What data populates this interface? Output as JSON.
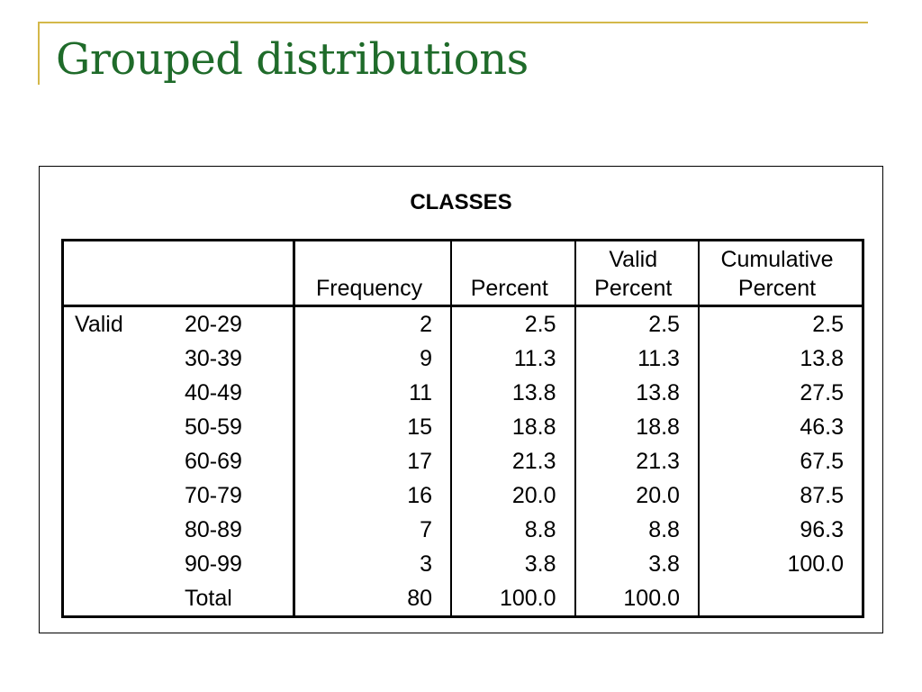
{
  "slide": {
    "title": "Grouped distributions"
  },
  "table": {
    "caption": "CLASSES",
    "columns": {
      "frequency": "Frequency",
      "percent": "Percent",
      "valid_percent": [
        "Valid",
        "Percent"
      ],
      "cumulative_percent": [
        "Cumulative",
        "Percent"
      ]
    },
    "group_label": "Valid",
    "rows": [
      {
        "cls": "20-29",
        "frequency": "2",
        "percent": "2.5",
        "valid_percent": "2.5",
        "cumulative_percent": "2.5"
      },
      {
        "cls": "30-39",
        "frequency": "9",
        "percent": "11.3",
        "valid_percent": "11.3",
        "cumulative_percent": "13.8"
      },
      {
        "cls": "40-49",
        "frequency": "11",
        "percent": "13.8",
        "valid_percent": "13.8",
        "cumulative_percent": "27.5"
      },
      {
        "cls": "50-59",
        "frequency": "15",
        "percent": "18.8",
        "valid_percent": "18.8",
        "cumulative_percent": "46.3"
      },
      {
        "cls": "60-69",
        "frequency": "17",
        "percent": "21.3",
        "valid_percent": "21.3",
        "cumulative_percent": "67.5"
      },
      {
        "cls": "70-79",
        "frequency": "16",
        "percent": "20.0",
        "valid_percent": "20.0",
        "cumulative_percent": "87.5"
      },
      {
        "cls": "80-89",
        "frequency": "7",
        "percent": "8.8",
        "valid_percent": "8.8",
        "cumulative_percent": "96.3"
      },
      {
        "cls": "90-99",
        "frequency": "3",
        "percent": "3.8",
        "valid_percent": "3.8",
        "cumulative_percent": "100.0"
      },
      {
        "cls": "Total",
        "frequency": "80",
        "percent": "100.0",
        "valid_percent": "100.0",
        "cumulative_percent": ""
      }
    ]
  },
  "colors": {
    "title": "#1f6b2a",
    "accent_rule": "#d4b84a",
    "text": "#000000"
  }
}
